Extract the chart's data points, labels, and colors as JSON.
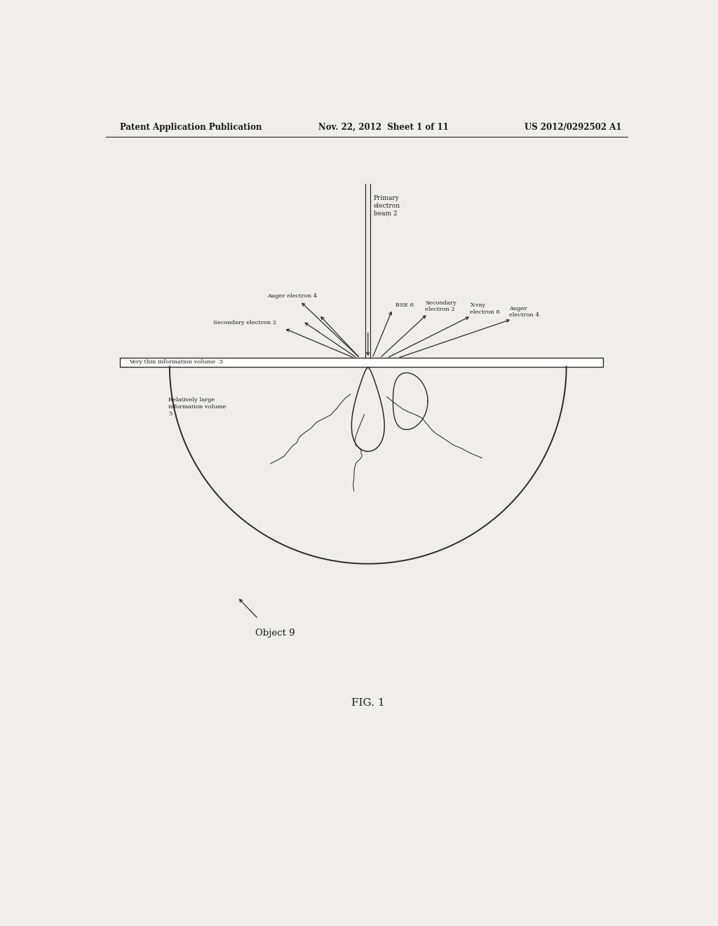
{
  "bg_color": "#f0eeeb",
  "line_color": "#2a2a2a",
  "text_color": "#1a1a1a",
  "header_left": "Patent Application Publication",
  "header_mid": "Nov. 22, 2012  Sheet 1 of 11",
  "header_right": "US 2012/0292502 A1",
  "fig_label": "FIG. 1",
  "labels": {
    "primary_beam": "Primary\nelectron\nbeam 2",
    "auger_left": "Auger electron 4",
    "secondary_left": "Secondary electron 2",
    "bse": "BSE 6",
    "secondary_right": "Secondary\nelectron 2",
    "xray": "X-ray\nelectron 8",
    "auger_right": "Auger\nelectron 4",
    "thin_volume": "Very thin information volume  3",
    "large_volume": "Relatively large\ninformation volume\n5",
    "object": "Object 9"
  }
}
